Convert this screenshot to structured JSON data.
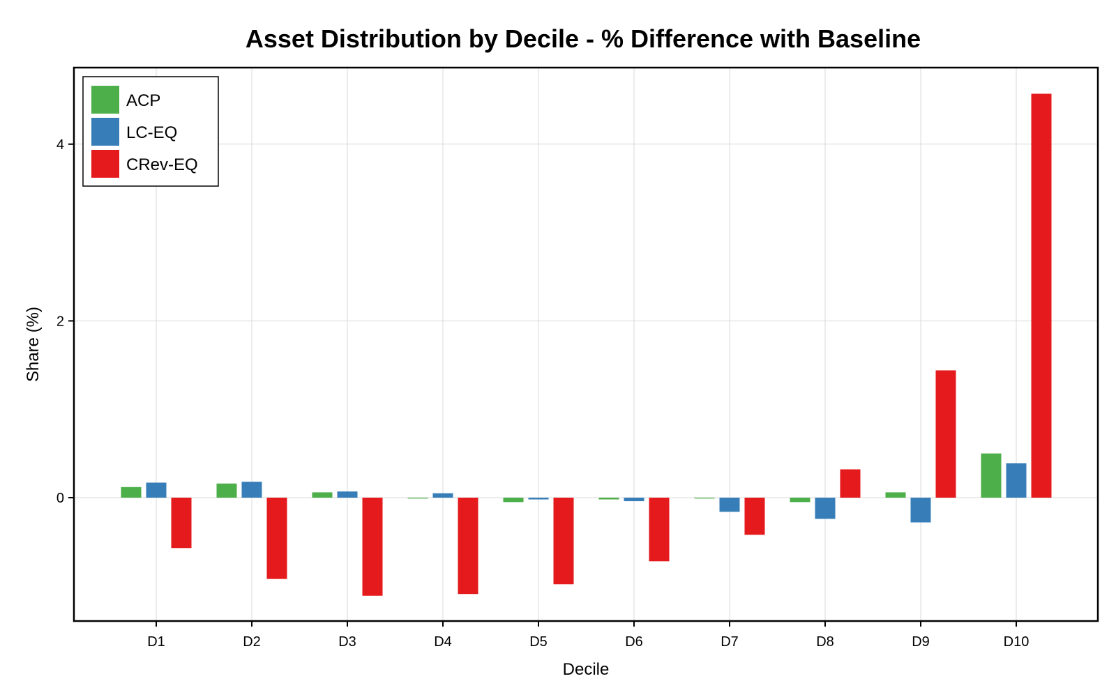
{
  "chart_data": {
    "type": "bar",
    "title": "Asset Distribution by Decile - % Difference with Baseline",
    "xlabel": "Decile",
    "ylabel": "Share (%)",
    "categories": [
      "D1",
      "D2",
      "D3",
      "D4",
      "D5",
      "D6",
      "D7",
      "D8",
      "D9",
      "D10"
    ],
    "ylim": [
      -1.4,
      4.85
    ],
    "yticks": [
      0,
      2,
      4
    ],
    "grid": true,
    "legend_position": "top-left",
    "series": [
      {
        "name": "ACP",
        "color": "#4daf4a",
        "values": [
          0.12,
          0.16,
          0.06,
          -0.01,
          -0.05,
          -0.02,
          -0.01,
          -0.05,
          0.06,
          0.5
        ]
      },
      {
        "name": "LC-EQ",
        "color": "#377eb8",
        "values": [
          0.17,
          0.18,
          0.07,
          0.05,
          -0.02,
          -0.04,
          -0.16,
          -0.24,
          -0.28,
          0.39
        ]
      },
      {
        "name": "CRev-EQ",
        "color": "#e41a1c",
        "values": [
          -0.57,
          -0.92,
          -1.11,
          -1.09,
          -0.98,
          -0.72,
          -0.42,
          0.32,
          1.44,
          4.57
        ]
      }
    ]
  }
}
